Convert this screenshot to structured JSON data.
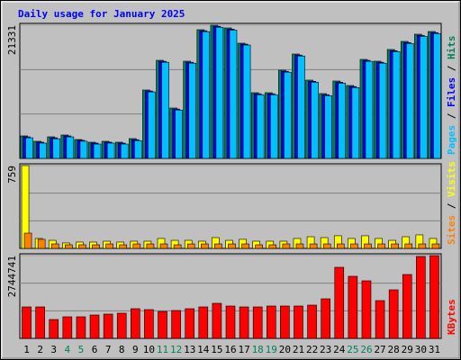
{
  "chart_data": [
    {
      "type": "bar",
      "title": "Daily usage for January 2025",
      "legend_separator": " / ",
      "categories": [
        "1",
        "2",
        "3",
        "4",
        "5",
        "6",
        "7",
        "8",
        "9",
        "10",
        "11",
        "12",
        "13",
        "14",
        "15",
        "16",
        "17",
        "18",
        "19",
        "20",
        "21",
        "22",
        "23",
        "24",
        "25",
        "26",
        "27",
        "28",
        "29",
        "30",
        "31"
      ],
      "series": [
        {
          "name": "Hits",
          "color": "#00805c",
          "values": [
            3603,
            2738,
            3459,
            3747,
            3027,
            2594,
            2738,
            2594,
            3171,
            10954,
            15710,
            8071,
            15566,
            20610,
            21331,
            20899,
            18448,
            10521,
            10521,
            14124,
            16719,
            12539,
            10377,
            12395,
            11674,
            15854,
            15566,
            17440,
            18737,
            19890,
            20322
          ]
        },
        {
          "name": "Files",
          "color": "#0000ff",
          "values": [
            3450,
            2600,
            3300,
            3600,
            2900,
            2450,
            2600,
            2450,
            3000,
            10800,
            15550,
            7900,
            15400,
            20450,
            21150,
            20700,
            18300,
            10350,
            10350,
            13950,
            16550,
            12350,
            10200,
            12200,
            11500,
            15700,
            15400,
            17250,
            18550,
            19700,
            20150
          ]
        },
        {
          "name": "Pages",
          "color": "#00c0ff",
          "values": [
            3300,
            2450,
            3150,
            3450,
            2750,
            2300,
            2450,
            2300,
            2850,
            10650,
            15400,
            7750,
            15250,
            20300,
            21000,
            20550,
            18150,
            10200,
            10200,
            13800,
            16400,
            12200,
            10050,
            12050,
            11350,
            15550,
            15250,
            17100,
            18400,
            19550,
            20000
          ]
        }
      ],
      "ylim": [
        0,
        21331
      ],
      "yticks": [
        21331
      ]
    },
    {
      "type": "bar",
      "legend_separator": " / ",
      "categories": [
        "1",
        "2",
        "3",
        "4",
        "5",
        "6",
        "7",
        "8",
        "9",
        "10",
        "11",
        "12",
        "13",
        "14",
        "15",
        "16",
        "17",
        "18",
        "19",
        "20",
        "21",
        "22",
        "23",
        "24",
        "25",
        "26",
        "27",
        "28",
        "29",
        "30",
        "31"
      ],
      "series": [
        {
          "name": "Visits",
          "color": "#ffff00",
          "values": [
            759,
            91,
            74,
            50,
            58,
            58,
            66,
            58,
            66,
            66,
            91,
            74,
            74,
            66,
            99,
            74,
            83,
            66,
            66,
            66,
            91,
            107,
            99,
            116,
            91,
            116,
            91,
            74,
            107,
            124,
            91
          ]
        },
        {
          "name": "Sites",
          "color": "#ff8000",
          "values": [
            140,
            83,
            41,
            33,
            33,
            33,
            41,
            33,
            41,
            41,
            41,
            33,
            41,
            41,
            41,
            41,
            41,
            33,
            33,
            41,
            41,
            41,
            41,
            41,
            41,
            41,
            41,
            41,
            41,
            41,
            41
          ]
        }
      ],
      "ylim": [
        0,
        759
      ],
      "yticks": [
        759
      ]
    },
    {
      "type": "bar",
      "categories": [
        "1",
        "2",
        "3",
        "4",
        "5",
        "6",
        "7",
        "8",
        "9",
        "10",
        "11",
        "12",
        "13",
        "14",
        "15",
        "16",
        "17",
        "18",
        "19",
        "20",
        "21",
        "22",
        "23",
        "24",
        "25",
        "26",
        "27",
        "28",
        "29",
        "30",
        "31"
      ],
      "category_colors": [
        "#000000",
        "#000000",
        "#000000",
        "#00805c",
        "#00805c",
        "#000000",
        "#000000",
        "#000000",
        "#000000",
        "#000000",
        "#00805c",
        "#00805c",
        "#000000",
        "#000000",
        "#000000",
        "#000000",
        "#000000",
        "#00805c",
        "#00805c",
        "#000000",
        "#000000",
        "#000000",
        "#000000",
        "#000000",
        "#00805c",
        "#00805c",
        "#000000",
        "#000000",
        "#000000",
        "#000000",
        "#000000"
      ],
      "series": [
        {
          "name": "KBytes",
          "color": "#ff0000",
          "values": [
            1044190,
            1044190,
            626514,
            716016,
            716016,
            775684,
            805518,
            835352,
            984522,
            954688,
            895020,
            924854,
            984522,
            1044190,
            1163526,
            1074024,
            1044190,
            1044190,
            1074024,
            1074024,
            1074024,
            1103858,
            1312696,
            2356886,
            2058546,
            1909376,
            1253028,
            1611036,
            2118214,
            2714894,
            2744741
          ]
        }
      ],
      "ylim": [
        0,
        2744741
      ],
      "yticks": [
        2744741
      ]
    }
  ]
}
